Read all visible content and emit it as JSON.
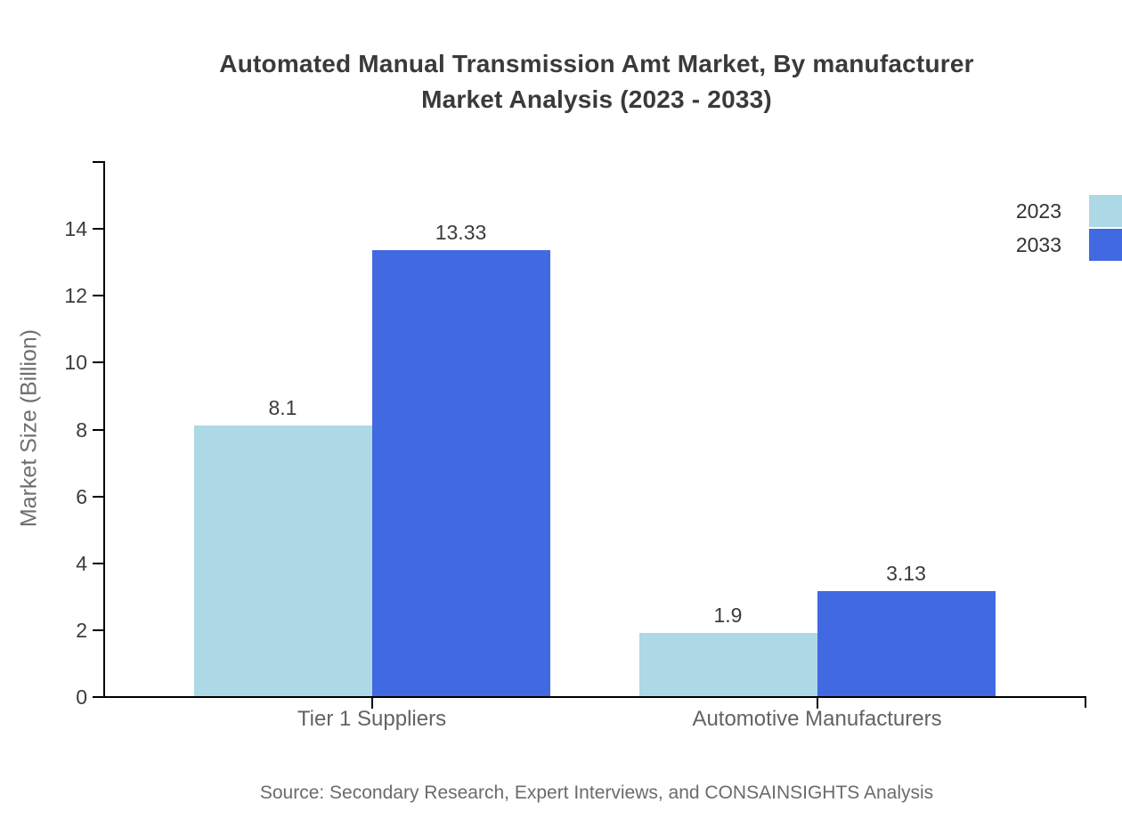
{
  "source_note": "Source: Secondary Research, Expert Interviews, and CONSAINSIGHTS Analysis",
  "chart_data": {
    "type": "bar",
    "title": "Automated Manual Transmission Amt Market, By manufacturer\nMarket Analysis (2023 - 2033)",
    "categories": [
      "Tier 1 Suppliers",
      "Automotive Manufacturers"
    ],
    "series": [
      {
        "name": "2023",
        "color": "#ADD8E6",
        "values": [
          8.1,
          1.9
        ]
      },
      {
        "name": "2033",
        "color": "#4169E1",
        "values": [
          13.33,
          3.13
        ]
      }
    ],
    "value_labels": [
      "8.1",
      "13.33",
      "1.9",
      "3.13"
    ],
    "xlabel": "",
    "ylabel": "Market Size (Billion)",
    "ylim": [
      0,
      16
    ],
    "yticks": [
      0,
      2,
      4,
      6,
      8,
      10,
      12,
      14
    ],
    "grid": false,
    "legend_position": "top-right",
    "axis_color": "#000000",
    "title_color": "#3a3a3a",
    "label_color": "#636363"
  }
}
